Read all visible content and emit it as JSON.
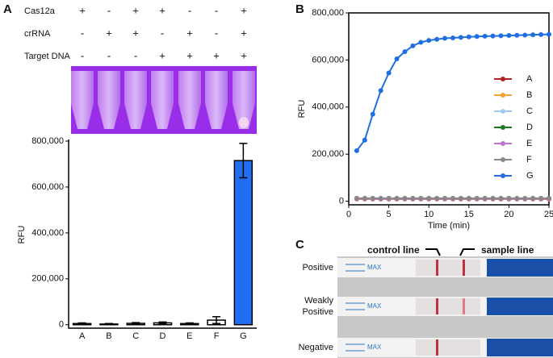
{
  "panels": [
    "A",
    "B",
    "C"
  ],
  "conditions": {
    "rows": [
      {
        "label": "Cas12a",
        "signs": [
          "+",
          "-",
          "+",
          "+",
          "-",
          "-",
          "+"
        ]
      },
      {
        "label": "crRNA",
        "signs": [
          "-",
          "+",
          "+",
          "-",
          "+",
          "-",
          "+"
        ]
      },
      {
        "label": "Target DNA",
        "signs": [
          "-",
          "-",
          "-",
          "+",
          "+",
          "+",
          "+"
        ]
      }
    ]
  },
  "chart_data": [
    {
      "type": "bar",
      "ylabel": "RFU",
      "categories": [
        "A",
        "B",
        "C",
        "D",
        "E",
        "F",
        "G"
      ],
      "values": [
        5000,
        3000,
        6000,
        8000,
        5000,
        20000,
        715000
      ],
      "errors": [
        3000,
        2000,
        3000,
        4000,
        3000,
        15000,
        75000
      ],
      "colors": [
        "#ffffff",
        "#ffffff",
        "#ffffff",
        "#ffffff",
        "#ffffff",
        "#ffffff",
        "#1f6ff0"
      ],
      "ylim": [
        -15000,
        800000
      ],
      "yticks": [
        0,
        {
          "value": 200000,
          "label": "200,000"
        },
        {
          "value": 400000,
          "label": "400,000"
        },
        {
          "value": 600000,
          "label": "600,000"
        },
        {
          "value": 800000,
          "label": "800,000"
        }
      ]
    },
    {
      "type": "line",
      "xlabel": "Time (min)",
      "ylabel": "RFU",
      "x": [
        1,
        2,
        3,
        4,
        5,
        6,
        7,
        8,
        9,
        10,
        11,
        12,
        13,
        14,
        15,
        16,
        17,
        18,
        19,
        20,
        21,
        22,
        23,
        24,
        25
      ],
      "xlim": [
        0,
        25
      ],
      "xticks": [
        0,
        5,
        10,
        15,
        20,
        25
      ],
      "ylim": [
        -15000,
        800000
      ],
      "yticks": [
        0,
        {
          "value": 200000,
          "label": "200,000"
        },
        {
          "value": 400000,
          "label": "400,000"
        },
        {
          "value": 600000,
          "label": "600,000"
        },
        {
          "value": 800000,
          "label": "800,000"
        }
      ],
      "legend": "right",
      "series": [
        {
          "name": "A",
          "color": "#b22222",
          "values": [
            10000,
            10000,
            10000,
            10000,
            10000,
            10000,
            10000,
            10000,
            10000,
            10000,
            10000,
            10000,
            10000,
            10000,
            10000,
            10000,
            10000,
            10000,
            10000,
            10000,
            10000,
            10000,
            10000,
            10000,
            10000
          ]
        },
        {
          "name": "B",
          "color": "#f5a030",
          "values": [
            9000,
            9000,
            9000,
            9000,
            9000,
            9000,
            9000,
            9000,
            9000,
            9000,
            9000,
            9000,
            9000,
            9000,
            9000,
            9000,
            9000,
            9000,
            9000,
            9000,
            9000,
            9000,
            9000,
            9000,
            9000
          ]
        },
        {
          "name": "C",
          "color": "#9ec9f0",
          "values": [
            11000,
            11000,
            11000,
            11000,
            11000,
            11000,
            11000,
            11000,
            11000,
            11000,
            11000,
            11000,
            11000,
            11000,
            11000,
            11000,
            11000,
            11000,
            11000,
            11000,
            11000,
            11000,
            11000,
            11000,
            11000
          ]
        },
        {
          "name": "D",
          "color": "#1e7a1e",
          "values": [
            12000,
            12000,
            12000,
            12000,
            12000,
            12000,
            12000,
            12000,
            12000,
            12000,
            12000,
            12000,
            12000,
            12000,
            12000,
            12000,
            12000,
            12000,
            12000,
            12000,
            12000,
            12000,
            12000,
            12000,
            12000
          ]
        },
        {
          "name": "E",
          "color": "#c070d0",
          "values": [
            10000,
            10000,
            10000,
            10000,
            10000,
            10000,
            10000,
            10000,
            10000,
            10000,
            10000,
            10000,
            10000,
            10000,
            10000,
            10000,
            10000,
            10000,
            10000,
            10000,
            10000,
            10000,
            10000,
            10000,
            10000
          ]
        },
        {
          "name": "F",
          "color": "#888888",
          "values": [
            13000,
            13000,
            13000,
            13000,
            13000,
            13000,
            13000,
            13000,
            13000,
            13000,
            13000,
            13000,
            13000,
            13000,
            13000,
            13000,
            13000,
            13000,
            13000,
            13000,
            13000,
            13000,
            13000,
            13000,
            13000
          ]
        },
        {
          "name": "G",
          "color": "#1f6fe0",
          "values": [
            215000,
            260000,
            370000,
            470000,
            545000,
            605000,
            635000,
            660000,
            675000,
            683000,
            688000,
            692000,
            694000,
            696000,
            698000,
            700000,
            701000,
            702000,
            703000,
            704000,
            705000,
            706000,
            707000,
            708000,
            709000
          ]
        }
      ]
    }
  ],
  "strip": {
    "control": "control line",
    "sample": "sample line",
    "rows": [
      [
        "Positive"
      ],
      [
        "Weakly",
        "Positive"
      ],
      [
        "Negative"
      ]
    ],
    "pad": "MAX"
  }
}
